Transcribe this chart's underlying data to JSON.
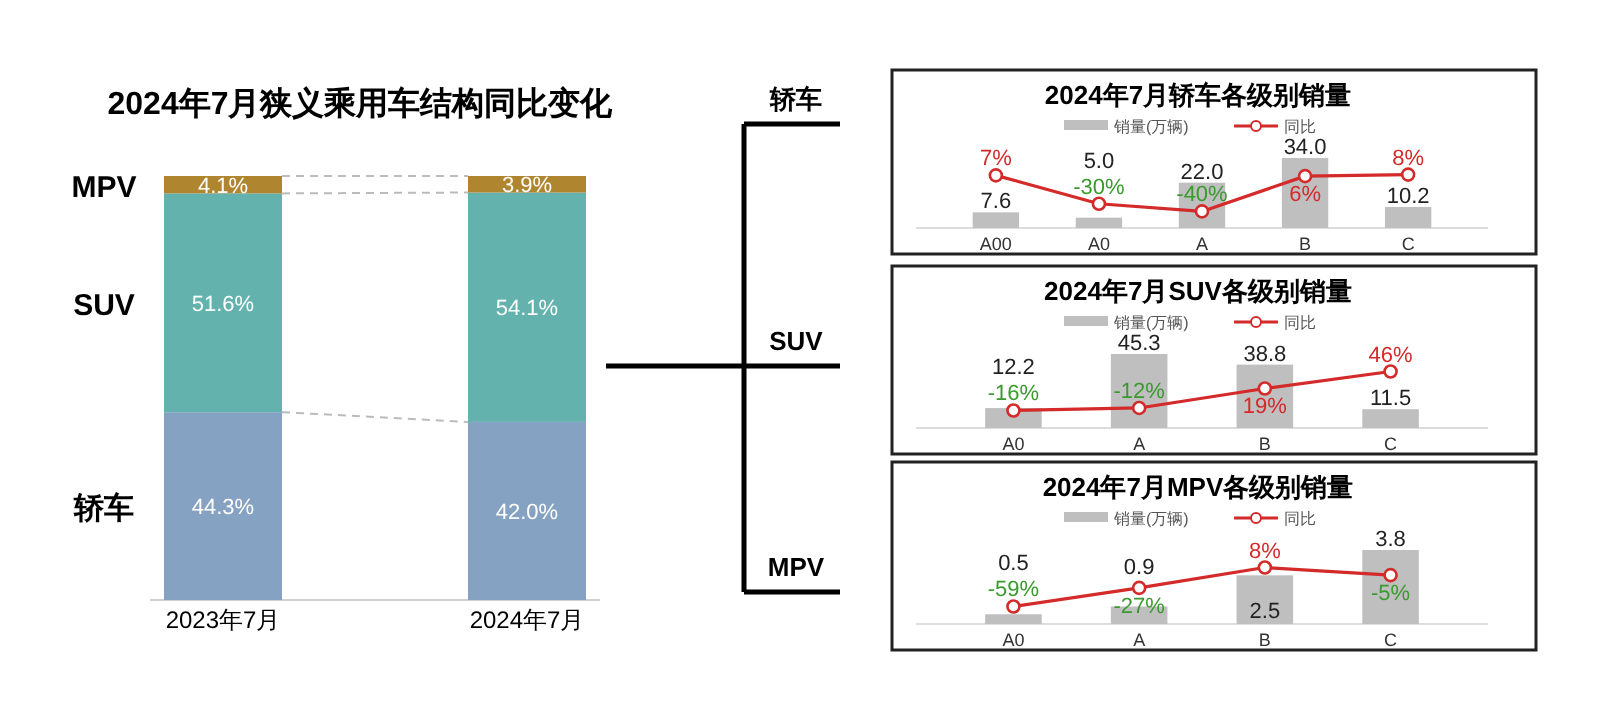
{
  "chart_data": [
    {
      "type": "bar",
      "title": "2024年7月狭义乘用车结构同比变化",
      "stacked": true,
      "categories": [
        "2023年7月",
        "2024年7月"
      ],
      "series": [
        {
          "name": "轿车",
          "color": "#86a2c2",
          "values": [
            44.3,
            42.0
          ],
          "value_labels": [
            "44.3%",
            "42.0%"
          ]
        },
        {
          "name": "SUV",
          "color": "#63b2ae",
          "values": [
            51.6,
            54.1
          ],
          "value_labels": [
            "51.6%",
            "54.1%"
          ]
        },
        {
          "name": "MPV",
          "color": "#b08530",
          "values": [
            4.1,
            3.9
          ],
          "value_labels": [
            "4.1%",
            "3.9%"
          ]
        }
      ],
      "annotations": [
        "轿车",
        "SUV",
        "MPV"
      ]
    },
    {
      "type": "bar",
      "title": "2024年7月轿车各级别销量",
      "categories": [
        "A00",
        "A0",
        "A",
        "B",
        "C"
      ],
      "legend": "top",
      "series": [
        {
          "name": "销量(万辆)",
          "color": "#bfbfbf",
          "values": [
            7.6,
            5.0,
            22.0,
            34.0,
            10.2
          ],
          "value_labels": [
            "7.6",
            "5.0",
            "22.0",
            "34.0",
            "10.2"
          ]
        },
        {
          "name": "同比",
          "type": "line",
          "axis": "y2",
          "color": "#d42a2a",
          "marker": "circle",
          "values": [
            7,
            -30,
            -40,
            6,
            8
          ],
          "value_labels": [
            "7%",
            "-30%",
            "-40%",
            "6%",
            "8%"
          ]
        }
      ]
    },
    {
      "type": "bar",
      "title": "2024年7月SUV各级别销量",
      "categories": [
        "A0",
        "A",
        "B",
        "C"
      ],
      "legend": "top",
      "series": [
        {
          "name": "销量(万辆)",
          "color": "#bfbfbf",
          "values": [
            12.2,
            45.3,
            38.8,
            11.5
          ],
          "value_labels": [
            "12.2",
            "45.3",
            "38.8",
            "11.5"
          ]
        },
        {
          "name": "同比",
          "type": "line",
          "axis": "y2",
          "color": "#d42a2a",
          "marker": "circle",
          "values": [
            -16,
            -12,
            19,
            46
          ],
          "value_labels": [
            "-16%",
            "-12%",
            "19%",
            "46%"
          ]
        }
      ]
    },
    {
      "type": "bar",
      "title": "2024年7月MPV各级别销量",
      "categories": [
        "A0",
        "A",
        "B",
        "C"
      ],
      "legend": "top",
      "series": [
        {
          "name": "销量(万辆)",
          "color": "#bfbfbf",
          "values": [
            0.5,
            0.9,
            2.5,
            3.8
          ],
          "value_labels": [
            "0.5",
            "0.9",
            "2.5",
            "3.8"
          ]
        },
        {
          "name": "同比",
          "type": "line",
          "axis": "y2",
          "color": "#d42a2a",
          "marker": "circle",
          "values": [
            -59,
            -27,
            8,
            -5
          ],
          "value_labels": [
            "-59%",
            "-27%",
            "8%",
            "-5%"
          ]
        }
      ]
    }
  ]
}
